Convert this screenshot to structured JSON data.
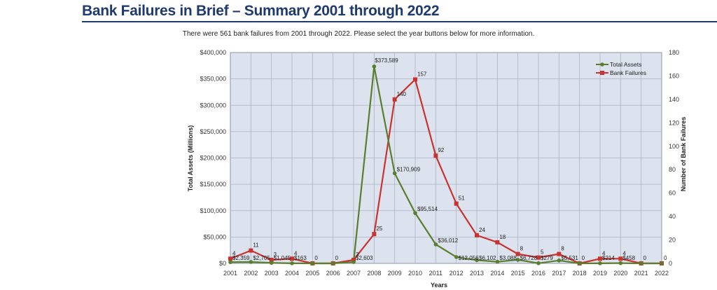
{
  "page": {
    "title": "Bank Failures in Brief – Summary 2001 through 2022",
    "summary": "There were 561 bank failures from 2001 through 2022. Please select the year buttons below for more information."
  },
  "chart_data": {
    "type": "line",
    "xlabel": "Years",
    "ylabel_left": "Total Assets (Millions)",
    "ylabel_right": "Number of Bank Failures",
    "x": [
      2001,
      2002,
      2003,
      2004,
      2005,
      2006,
      2007,
      2008,
      2009,
      2010,
      2011,
      2012,
      2013,
      2014,
      2015,
      2016,
      2017,
      2018,
      2019,
      2020,
      2021,
      2022
    ],
    "y_left_ticks": [
      "$0",
      "$50,000",
      "$100,000",
      "$150,000",
      "$200,000",
      "$250,000",
      "$300,000",
      "$350,000",
      "$400,000"
    ],
    "y_right_ticks": [
      "0",
      "20",
      "40",
      "60",
      "80",
      "100",
      "120",
      "140",
      "160",
      "180"
    ],
    "ylim_left": [
      0,
      400000
    ],
    "ylim_right": [
      0,
      180
    ],
    "grid": true,
    "legend_position": "top-right",
    "series": [
      {
        "name": "Total Assets",
        "axis": "left",
        "color": "#5a7d2e",
        "values": [
          2359,
          2705,
          1045,
          163,
          0,
          0,
          2603,
          373589,
          170909,
          95514,
          36012,
          12056,
          6102,
          3088,
          6728,
          279,
          5531,
          0,
          214,
          458,
          0,
          0
        ],
        "labels": [
          "$2,359",
          "$2,705",
          "$1,045",
          "$163",
          "",
          "",
          "$2,603",
          "$373,589",
          "$170,909",
          "$95,514",
          "$36,012",
          "$12,056",
          "$6,102",
          "$3,088",
          "$6,728",
          "$279",
          "$5,531",
          "",
          "$214",
          "$458",
          "",
          ""
        ]
      },
      {
        "name": "Bank Failures",
        "axis": "right",
        "color": "#c8332f",
        "values": [
          4,
          11,
          3,
          4,
          0,
          0,
          3,
          25,
          140,
          157,
          92,
          51,
          24,
          18,
          8,
          5,
          8,
          0,
          4,
          4,
          0,
          0
        ],
        "labels": [
          "4",
          "11",
          "3",
          "4",
          "0",
          "0",
          "3",
          "25",
          "140",
          "157",
          "92",
          "51",
          "24",
          "18",
          "8",
          "5",
          "8",
          "0",
          "4",
          "4",
          "0",
          "0"
        ]
      }
    ]
  }
}
